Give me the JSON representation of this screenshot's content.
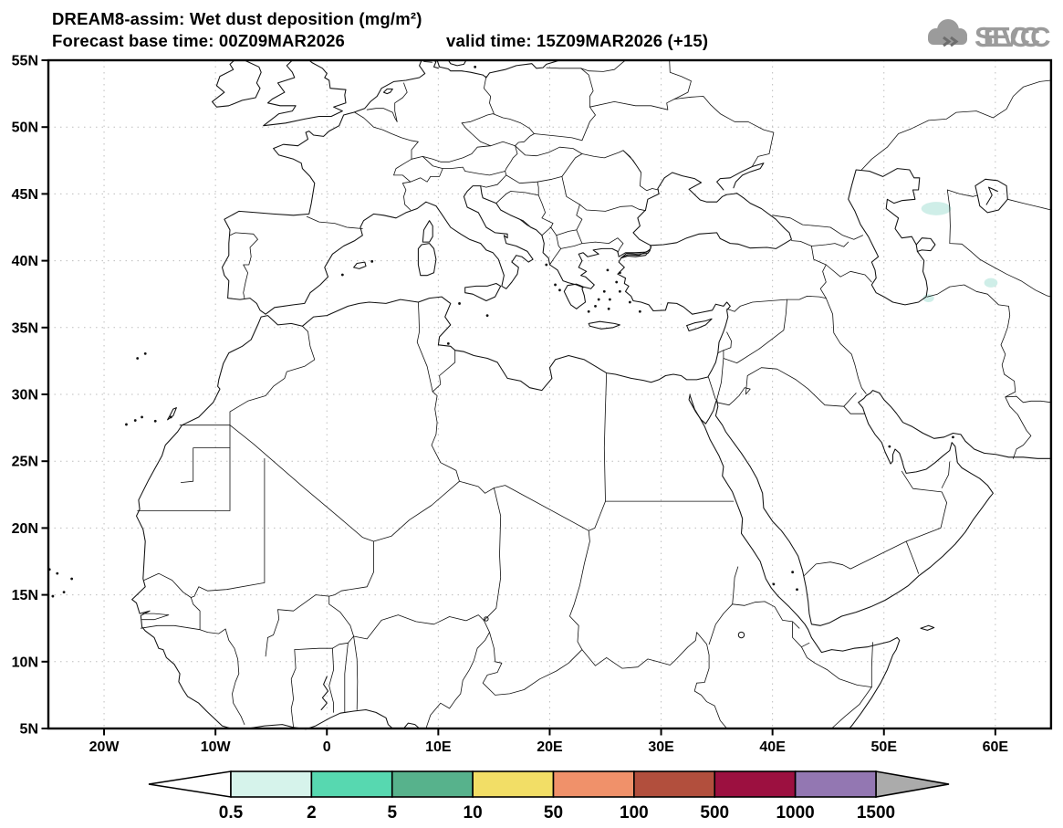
{
  "title": {
    "line1": "DREAM8-assim: Wet dust deposition (mg/m²)",
    "line2_left": "Forecast base time: 00Z09MAR2026",
    "line2_right": "valid time: 15Z09MAR2026 (+15)"
  },
  "logo": {
    "text": "SEEVCCC",
    "color": "#9b9b9b"
  },
  "axes": {
    "lat_ticks": [
      {
        "label": "55N",
        "value": 55
      },
      {
        "label": "50N",
        "value": 50
      },
      {
        "label": "45N",
        "value": 45
      },
      {
        "label": "40N",
        "value": 40
      },
      {
        "label": "35N",
        "value": 35
      },
      {
        "label": "30N",
        "value": 30
      },
      {
        "label": "25N",
        "value": 25
      },
      {
        "label": "20N",
        "value": 20
      },
      {
        "label": "15N",
        "value": 15
      },
      {
        "label": "10N",
        "value": 10
      },
      {
        "label": "5N",
        "value": 5
      }
    ],
    "lon_ticks": [
      {
        "label": "20W",
        "value": -20
      },
      {
        "label": "10W",
        "value": -10
      },
      {
        "label": "0",
        "value": 0
      },
      {
        "label": "10E",
        "value": 10
      },
      {
        "label": "20E",
        "value": 20
      },
      {
        "label": "30E",
        "value": 30
      },
      {
        "label": "40E",
        "value": 40
      },
      {
        "label": "50E",
        "value": 50
      },
      {
        "label": "60E",
        "value": 60
      }
    ],
    "grid_color": "#bdbdbd",
    "frame_color": "#000000"
  },
  "colorbar": {
    "labels": [
      "0.5",
      "2",
      "5",
      "10",
      "50",
      "100",
      "500",
      "1000",
      "1500"
    ],
    "cell_colors": [
      "#d6f3eb",
      "#57d8b0",
      "#57b28c",
      "#f2de66",
      "#f0916a",
      "#b24f3d",
      "#9c1040",
      "#9377b2"
    ],
    "under_color": "#ffffff",
    "over_color": "#ababab",
    "outline_color": "#000000"
  },
  "chart_data": {
    "type": "heatmap",
    "title": "DREAM8-assim: Wet dust deposition (mg/m²)",
    "variable": "Wet dust deposition",
    "units": "mg/m²",
    "model": "DREAM8-assim",
    "forecast_base_time": "00Z09MAR2026",
    "valid_time": "15Z09MAR2026",
    "forecast_hour_offset": "+15",
    "projection": "equirectangular lat-lon",
    "lon_range": [
      -25,
      65
    ],
    "lat_range": [
      5,
      55
    ],
    "grid": "dotted, 5 deg latitude x 10 deg longitude",
    "legend_position": "bottom",
    "contour_levels_mg_m2": [
      0.5,
      2,
      5,
      10,
      50,
      100,
      500,
      1000,
      1500
    ],
    "regions": [
      {
        "lon": 54.7,
        "lat": 43.9,
        "lon_radius": 1.35,
        "lat_radius": 0.5,
        "value_range_mg_m2": "0.5-2",
        "color": "#cfeee8",
        "location": "east of Caspian Sea"
      },
      {
        "lon": 59.6,
        "lat": 38.35,
        "lon_radius": 0.6,
        "lat_radius": 0.35,
        "value_range_mg_m2": "0.5-2",
        "color": "#cfeee8",
        "location": "NE Iran / Turkmenistan border"
      },
      {
        "lon": 54.0,
        "lat": 37.2,
        "lon_radius": 0.5,
        "lat_radius": 0.3,
        "value_range_mg_m2": "0.5-2",
        "color": "#cfeee8",
        "location": "SE of Caspian Sea"
      }
    ]
  }
}
